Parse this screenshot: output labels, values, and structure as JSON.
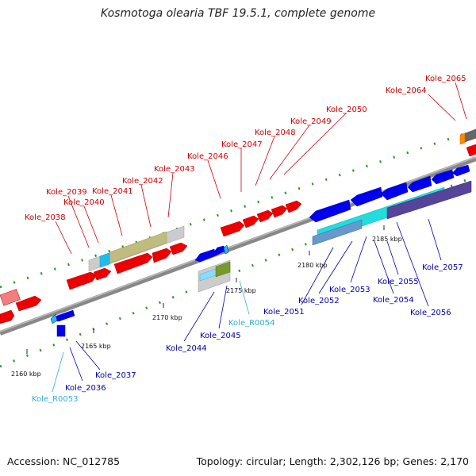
{
  "title": "Kosmotoga olearia TBF 19.5.1, complete genome",
  "footer": {
    "accession": "Accession: NC_012785",
    "summary": "Topology: circular; Length: 2,302,126 bp; Genes: 2,170"
  },
  "scale_ticks": [
    {
      "text": "2160 kbp"
    },
    {
      "text": "2165 kbp"
    },
    {
      "text": "2170 kbp"
    },
    {
      "text": "2175 kbp"
    },
    {
      "text": "2180 kbp"
    },
    {
      "text": "2185 kbp"
    }
  ],
  "colors": {
    "forward_gene": "#ee0000",
    "reverse_gene": "#0000dd",
    "rna": "#22bbee",
    "label_forward": "#cc0000",
    "label_reverse": "#0000aa",
    "label_rna": "#33aadd"
  },
  "upper_labels": [
    {
      "text": "Kole_2038"
    },
    {
      "text": "Kole_2039"
    },
    {
      "text": "Kole_2040"
    },
    {
      "text": "Kole_2041"
    },
    {
      "text": "Kole_2042"
    },
    {
      "text": "Kole_2043"
    },
    {
      "text": "Kole_2046"
    },
    {
      "text": "Kole_2047"
    },
    {
      "text": "Kole_2048"
    },
    {
      "text": "Kole_2049"
    },
    {
      "text": "Kole_2050"
    },
    {
      "text": "Kole_2064"
    },
    {
      "text": "Kole_2065"
    }
  ],
  "lower_labels": [
    {
      "text": "Kole_R0053"
    },
    {
      "text": "Kole_2036"
    },
    {
      "text": "Kole_2037"
    },
    {
      "text": "Kole_2044"
    },
    {
      "text": "Kole_2045"
    },
    {
      "text": "Kole_R0054"
    },
    {
      "text": "Kole_2051"
    },
    {
      "text": "Kole_2052"
    },
    {
      "text": "Kole_2053"
    },
    {
      "text": "Kole_2054"
    },
    {
      "text": "Kole_2055"
    },
    {
      "text": "Kole_2056"
    },
    {
      "text": "Kole_2057"
    }
  ]
}
